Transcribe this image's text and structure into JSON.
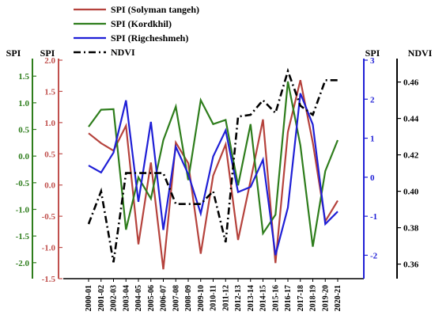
{
  "chart_data": {
    "type": "line",
    "categories": [
      "2000-01",
      "2001-02",
      "2002-03",
      "2003-04",
      "2004-05",
      "2005-06",
      "2006-07",
      "2007-08",
      "2008-09",
      "2009-10",
      "2010-11",
      "2011-12",
      "2012-13",
      "2013-14",
      "2014-15",
      "2015-16",
      "2016-17",
      "2017-18",
      "2018-19",
      "2019-20",
      "2020-21"
    ],
    "axes": [
      {
        "id": "green_spi",
        "label": "SPI",
        "ticks": [
          "1.5",
          "1.0",
          "0.5",
          "0.0",
          "-0.5",
          "-1.0",
          "-1.5",
          "-2.0"
        ],
        "ylim": [
          -2.3,
          1.8
        ],
        "color": "#2e7d1c"
      },
      {
        "id": "red_spi",
        "label": "SPI",
        "ticks": [
          "2.0",
          "1.5",
          "1.0",
          "0.5",
          "0.0",
          "-0.5",
          "-1.0",
          "-1.5"
        ],
        "ylim": [
          -1.5,
          2.0
        ],
        "color": "#c0504d"
      },
      {
        "id": "blue_spi",
        "label": "SPI",
        "ticks": [
          "3",
          "2",
          "1",
          "0",
          "-1",
          "-2"
        ],
        "ylim": [
          -2.6,
          3.0
        ],
        "color": "#1f1fd6"
      },
      {
        "id": "ndvi",
        "label": "NDVI",
        "ticks": [
          "0.46",
          "0.44",
          "0.42",
          "0.40",
          "0.38",
          "0.36"
        ],
        "ylim": [
          0.352,
          0.472
        ],
        "color": "#000000"
      }
    ],
    "series": [
      {
        "name": "SPI (Solyman tangeh)",
        "axis": "red_spi",
        "color": "#b5423c",
        "style": "solid",
        "values": [
          0.83,
          0.67,
          0.55,
          0.95,
          -0.95,
          0.36,
          -1.35,
          0.68,
          0.35,
          -1.1,
          0.15,
          0.65,
          -0.88,
          0.07,
          1.05,
          -1.25,
          0.85,
          1.68,
          0.68,
          -0.58,
          -0.25
        ]
      },
      {
        "name": "SPI (Kordkhil)",
        "axis": "green_spi",
        "color": "#2e7d1c",
        "style": "solid",
        "values": [
          0.55,
          0.87,
          0.88,
          -1.38,
          -0.4,
          -0.8,
          0.3,
          0.93,
          -0.45,
          1.05,
          0.6,
          0.68,
          -0.55,
          0.6,
          -1.45,
          -1.1,
          1.4,
          0.2,
          -1.7,
          -0.28,
          0.3
        ]
      },
      {
        "name": "SPI (Rigcheshmeh)",
        "axis": "blue_spi",
        "color": "#1f1fd6",
        "style": "solid",
        "values": [
          0.3,
          0.12,
          0.63,
          1.97,
          -0.63,
          1.42,
          -1.35,
          0.78,
          0.08,
          -0.93,
          0.53,
          1.2,
          -0.38,
          -0.25,
          0.45,
          -2.0,
          -0.78,
          2.15,
          1.35,
          -1.2,
          -0.88
        ]
      },
      {
        "name": "NDVI",
        "axis": "ndvi",
        "color": "#000000",
        "style": "dashdot",
        "values": [
          0.382,
          0.4,
          0.361,
          0.41,
          0.41,
          0.41,
          0.41,
          0.393,
          0.393,
          0.393,
          0.4,
          0.372,
          0.441,
          0.442,
          0.45,
          0.443,
          0.466,
          0.447,
          0.442,
          0.461,
          0.461
        ]
      }
    ],
    "legend_position": "top-left",
    "grid": false
  }
}
